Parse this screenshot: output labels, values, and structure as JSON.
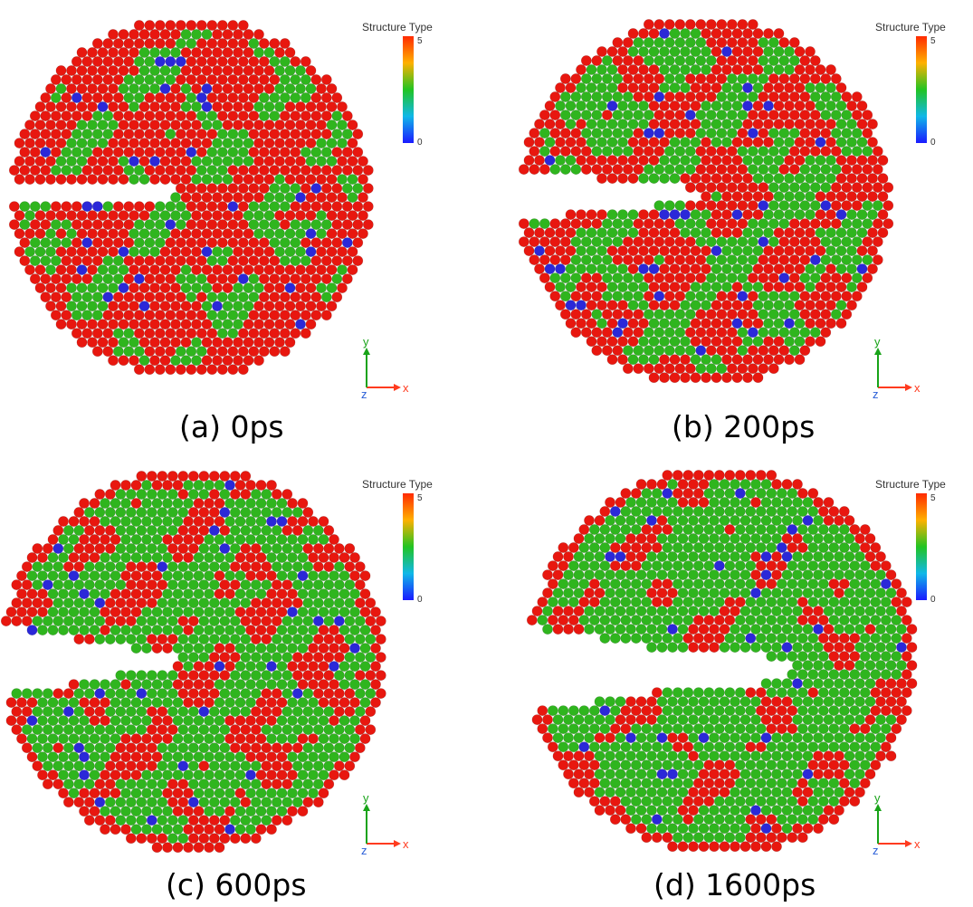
{
  "panels": [
    {
      "id": "a",
      "caption": "(a) 0ps",
      "stage": 0
    },
    {
      "id": "b",
      "caption": "(b) 200ps",
      "stage": 1
    },
    {
      "id": "c",
      "caption": "(c) 600ps",
      "stage": 2
    },
    {
      "id": "d",
      "caption": "(d) 1600ps",
      "stage": 3
    }
  ],
  "legend": {
    "title": "Structure Type",
    "max_label": "5",
    "min_label": "0"
  },
  "axes": {
    "x": "x",
    "y": "y",
    "z": "z"
  },
  "colors": {
    "red": "#e8170f",
    "green": "#2fb51e",
    "blue": "#2b28d8",
    "x_axis": "#ff3b1f",
    "y_axis": "#18a318",
    "z_axis": "#2a5fd8"
  }
}
